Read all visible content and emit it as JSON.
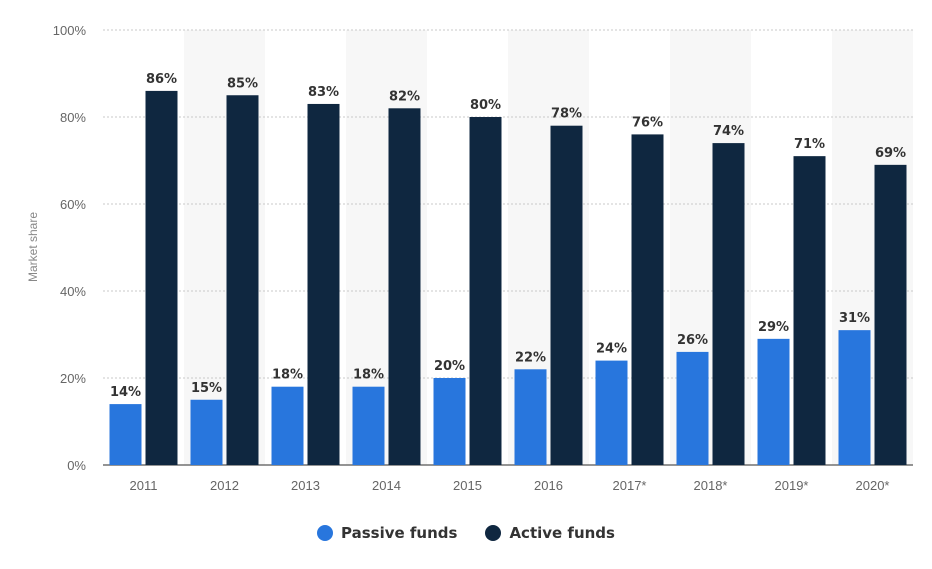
{
  "chart_data": {
    "type": "bar",
    "categories": [
      "2011",
      "2012",
      "2013",
      "2014",
      "2015",
      "2016",
      "2017*",
      "2018*",
      "2019*",
      "2020*"
    ],
    "series": [
      {
        "name": "Passive funds",
        "color": "#2876dd",
        "values": [
          14,
          15,
          18,
          18,
          20,
          22,
          24,
          26,
          29,
          31
        ]
      },
      {
        "name": "Active funds",
        "color": "#0f2740",
        "values": [
          86,
          85,
          83,
          82,
          80,
          78,
          76,
          74,
          71,
          69
        ]
      }
    ],
    "value_suffix": "%",
    "ylabel": "Market share",
    "ylim": [
      0,
      100
    ],
    "yticks": [
      "0%",
      "20%",
      "40%",
      "60%",
      "80%",
      "100%"
    ],
    "grid": true,
    "legend_position": "bottom"
  }
}
